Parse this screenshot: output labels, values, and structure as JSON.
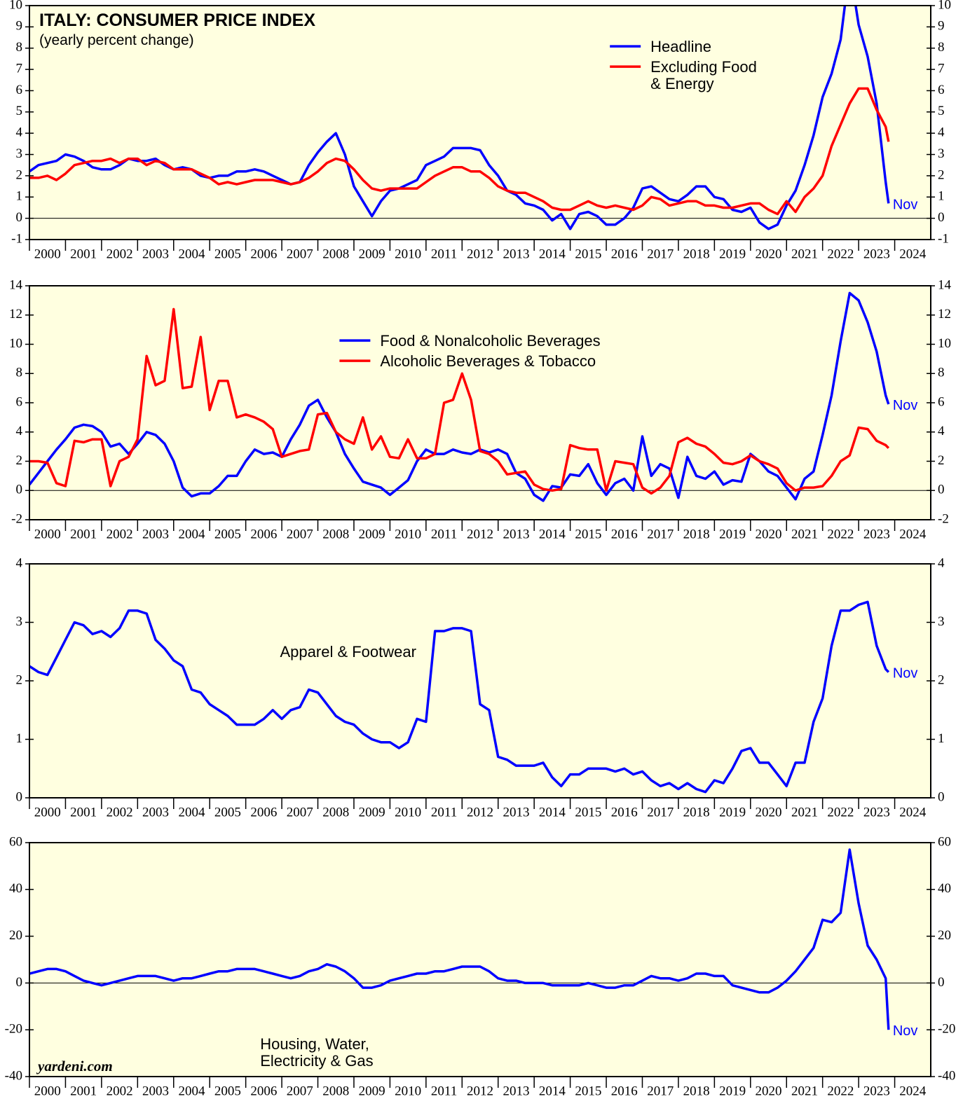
{
  "chart_data": [
    {
      "type": "line",
      "title": "ITALY: CONSUMER PRICE INDEX",
      "subtitle": "(yearly percent change)",
      "annotation": "Nov",
      "legend": "upper right",
      "xlim": [
        2000,
        2025
      ],
      "ylim": [
        -1,
        10
      ],
      "yticks": [
        -1,
        0,
        1,
        2,
        3,
        4,
        5,
        6,
        7,
        8,
        9,
        10
      ],
      "xticks": [
        2000,
        2001,
        2002,
        2003,
        2004,
        2005,
        2006,
        2007,
        2008,
        2009,
        2010,
        2011,
        2012,
        2013,
        2014,
        2015,
        2016,
        2017,
        2018,
        2019,
        2020,
        2021,
        2022,
        2023,
        2024
      ],
      "x": [
        2000,
        2000.25,
        2000.5,
        2000.75,
        2001,
        2001.25,
        2001.5,
        2001.75,
        2002,
        2002.25,
        2002.5,
        2002.75,
        2003,
        2003.25,
        2003.5,
        2003.75,
        2004,
        2004.25,
        2004.5,
        2004.75,
        2005,
        2005.25,
        2005.5,
        2005.75,
        2006,
        2006.25,
        2006.5,
        2006.75,
        2007,
        2007.25,
        2007.5,
        2007.75,
        2008,
        2008.25,
        2008.5,
        2008.75,
        2009,
        2009.25,
        2009.5,
        2009.75,
        2010,
        2010.25,
        2010.5,
        2010.75,
        2011,
        2011.25,
        2011.5,
        2011.75,
        2012,
        2012.25,
        2012.5,
        2012.75,
        2013,
        2013.25,
        2013.5,
        2013.75,
        2014,
        2014.25,
        2014.5,
        2014.75,
        2015,
        2015.25,
        2015.5,
        2015.75,
        2016,
        2016.25,
        2016.5,
        2016.75,
        2017,
        2017.25,
        2017.5,
        2017.75,
        2018,
        2018.25,
        2018.5,
        2018.75,
        2019,
        2019.25,
        2019.5,
        2019.75,
        2020,
        2020.25,
        2020.5,
        2020.75,
        2021,
        2021.25,
        2021.5,
        2021.75,
        2022,
        2022.25,
        2022.5,
        2022.75,
        2023,
        2023.25,
        2023.5,
        2023.75,
        2023.83
      ],
      "series": [
        {
          "name": "Headline",
          "color": "#0000ff",
          "values": [
            2.2,
            2.5,
            2.6,
            2.7,
            3.0,
            2.9,
            2.7,
            2.4,
            2.3,
            2.3,
            2.5,
            2.8,
            2.7,
            2.7,
            2.8,
            2.5,
            2.3,
            2.4,
            2.3,
            2.0,
            1.9,
            2.0,
            2.0,
            2.2,
            2.2,
            2.3,
            2.2,
            2.0,
            1.8,
            1.6,
            1.7,
            2.5,
            3.1,
            3.6,
            4.0,
            3.0,
            1.5,
            0.8,
            0.1,
            0.8,
            1.3,
            1.4,
            1.6,
            1.8,
            2.5,
            2.7,
            2.9,
            3.3,
            3.3,
            3.3,
            3.2,
            2.5,
            2.0,
            1.3,
            1.1,
            0.7,
            0.6,
            0.4,
            -0.1,
            0.2,
            -0.5,
            0.2,
            0.3,
            0.1,
            -0.3,
            -0.3,
            0.0,
            0.5,
            1.4,
            1.5,
            1.2,
            0.9,
            0.8,
            1.1,
            1.5,
            1.5,
            1.0,
            0.9,
            0.4,
            0.3,
            0.5,
            -0.2,
            -0.5,
            -0.3,
            0.6,
            1.3,
            2.5,
            3.9,
            5.7,
            6.8,
            8.4,
            11.8,
            9.1,
            7.6,
            5.4,
            1.7,
            0.7
          ]
        },
        {
          "name": "Excluding Food\n& Energy",
          "color": "#ff0000",
          "values": [
            1.9,
            1.9,
            2.0,
            1.8,
            2.1,
            2.5,
            2.6,
            2.7,
            2.7,
            2.8,
            2.6,
            2.8,
            2.8,
            2.5,
            2.7,
            2.6,
            2.3,
            2.3,
            2.3,
            2.1,
            1.9,
            1.6,
            1.7,
            1.6,
            1.7,
            1.8,
            1.8,
            1.8,
            1.7,
            1.6,
            1.7,
            1.9,
            2.2,
            2.6,
            2.8,
            2.7,
            2.3,
            1.8,
            1.4,
            1.3,
            1.4,
            1.4,
            1.4,
            1.4,
            1.7,
            2.0,
            2.2,
            2.4,
            2.4,
            2.2,
            2.2,
            1.9,
            1.5,
            1.3,
            1.2,
            1.2,
            1.0,
            0.8,
            0.5,
            0.4,
            0.4,
            0.6,
            0.8,
            0.6,
            0.5,
            0.6,
            0.5,
            0.4,
            0.6,
            1.0,
            0.9,
            0.6,
            0.7,
            0.8,
            0.8,
            0.6,
            0.6,
            0.5,
            0.5,
            0.6,
            0.7,
            0.7,
            0.4,
            0.2,
            0.8,
            0.3,
            1.0,
            1.4,
            2.0,
            3.4,
            4.4,
            5.4,
            6.1,
            6.1,
            5.1,
            4.3,
            3.6
          ]
        }
      ]
    },
    {
      "type": "line",
      "annotation": "Nov",
      "legend": "upper center",
      "xlim": [
        2000,
        2025
      ],
      "ylim": [
        -2,
        14
      ],
      "yticks": [
        -2,
        0,
        2,
        4,
        6,
        8,
        10,
        12,
        14
      ],
      "xticks": [
        2000,
        2001,
        2002,
        2003,
        2004,
        2005,
        2006,
        2007,
        2008,
        2009,
        2010,
        2011,
        2012,
        2013,
        2014,
        2015,
        2016,
        2017,
        2018,
        2019,
        2020,
        2021,
        2022,
        2023,
        2024
      ],
      "x": [
        2000,
        2000.25,
        2000.5,
        2000.75,
        2001,
        2001.25,
        2001.5,
        2001.75,
        2002,
        2002.25,
        2002.5,
        2002.75,
        2003,
        2003.25,
        2003.5,
        2003.75,
        2004,
        2004.25,
        2004.5,
        2004.75,
        2005,
        2005.25,
        2005.5,
        2005.75,
        2006,
        2006.25,
        2006.5,
        2006.75,
        2007,
        2007.25,
        2007.5,
        2007.75,
        2008,
        2008.25,
        2008.5,
        2008.75,
        2009,
        2009.25,
        2009.5,
        2009.75,
        2010,
        2010.25,
        2010.5,
        2010.75,
        2011,
        2011.25,
        2011.5,
        2011.75,
        2012,
        2012.25,
        2012.5,
        2012.75,
        2013,
        2013.25,
        2013.5,
        2013.75,
        2014,
        2014.25,
        2014.5,
        2014.75,
        2015,
        2015.25,
        2015.5,
        2015.75,
        2016,
        2016.25,
        2016.5,
        2016.75,
        2017,
        2017.25,
        2017.5,
        2017.75,
        2018,
        2018.25,
        2018.5,
        2018.75,
        2019,
        2019.25,
        2019.5,
        2019.75,
        2020,
        2020.25,
        2020.5,
        2020.75,
        2021,
        2021.25,
        2021.5,
        2021.75,
        2022,
        2022.25,
        2022.5,
        2022.75,
        2023,
        2023.25,
        2023.5,
        2023.75,
        2023.83
      ],
      "series": [
        {
          "name": "Food & Nonalcoholic Beverages",
          "color": "#0000ff",
          "values": [
            0.4,
            1.2,
            2.0,
            2.8,
            3.5,
            4.3,
            4.5,
            4.4,
            4.0,
            3.0,
            3.2,
            2.5,
            3.2,
            4.0,
            3.8,
            3.2,
            2.0,
            0.2,
            -0.4,
            -0.2,
            -0.2,
            0.3,
            1.0,
            1.0,
            2.0,
            2.8,
            2.5,
            2.6,
            2.3,
            3.5,
            4.5,
            5.8,
            6.2,
            5.0,
            4.0,
            2.5,
            1.5,
            0.6,
            0.4,
            0.2,
            -0.3,
            0.2,
            0.7,
            2.0,
            2.8,
            2.5,
            2.5,
            2.8,
            2.6,
            2.5,
            2.8,
            2.6,
            2.8,
            2.5,
            1.2,
            0.8,
            -0.3,
            -0.7,
            0.3,
            0.2,
            1.1,
            1.0,
            1.8,
            0.5,
            -0.3,
            0.5,
            0.8,
            0.0,
            3.7,
            1.0,
            1.8,
            1.5,
            -0.5,
            2.3,
            1.0,
            0.8,
            1.3,
            0.4,
            0.7,
            0.6,
            2.5,
            2.0,
            1.3,
            1.0,
            0.2,
            -0.6,
            0.8,
            1.3,
            3.8,
            6.5,
            10.2,
            13.5,
            13.0,
            11.5,
            9.5,
            6.5,
            5.9
          ]
        },
        {
          "name": "Alcoholic Beverages & Tobacco",
          "color": "#ff0000",
          "values": [
            2.0,
            2.0,
            1.9,
            0.5,
            0.3,
            3.4,
            3.3,
            3.5,
            3.5,
            0.3,
            2.0,
            2.3,
            3.5,
            9.2,
            7.2,
            7.5,
            12.4,
            7.0,
            7.1,
            10.5,
            5.5,
            7.5,
            7.5,
            5.0,
            5.2,
            5.0,
            4.7,
            4.2,
            2.3,
            2.5,
            2.7,
            2.8,
            5.2,
            5.3,
            4.0,
            3.5,
            3.2,
            5.0,
            2.8,
            3.7,
            2.3,
            2.2,
            3.5,
            2.2,
            2.2,
            2.5,
            6.0,
            6.2,
            8.0,
            6.2,
            2.7,
            2.5,
            2.0,
            1.1,
            1.2,
            1.3,
            0.4,
            0.1,
            0.0,
            0.1,
            3.1,
            2.9,
            2.8,
            2.8,
            0.0,
            2.0,
            1.9,
            1.8,
            0.2,
            -0.2,
            0.2,
            1.0,
            3.3,
            3.6,
            3.2,
            3.0,
            2.5,
            1.9,
            1.8,
            2.0,
            2.4,
            2.0,
            1.8,
            1.5,
            0.5,
            0.0,
            0.2,
            0.2,
            0.3,
            1.0,
            2.0,
            2.4,
            4.3,
            4.2,
            3.4,
            3.1,
            2.9
          ]
        }
      ]
    },
    {
      "type": "line",
      "annotation": "Nov",
      "legend": "center",
      "xlim": [
        2000,
        2025
      ],
      "ylim": [
        0,
        4
      ],
      "yticks": [
        0,
        1,
        2,
        3,
        4
      ],
      "xticks": [
        2000,
        2001,
        2002,
        2003,
        2004,
        2005,
        2006,
        2007,
        2008,
        2009,
        2010,
        2011,
        2012,
        2013,
        2014,
        2015,
        2016,
        2017,
        2018,
        2019,
        2020,
        2021,
        2022,
        2023,
        2024
      ],
      "x": [
        2000,
        2000.25,
        2000.5,
        2000.75,
        2001,
        2001.25,
        2001.5,
        2001.75,
        2002,
        2002.25,
        2002.5,
        2002.75,
        2003,
        2003.25,
        2003.5,
        2003.75,
        2004,
        2004.25,
        2004.5,
        2004.75,
        2005,
        2005.25,
        2005.5,
        2005.75,
        2006,
        2006.25,
        2006.5,
        2006.75,
        2007,
        2007.25,
        2007.5,
        2007.75,
        2008,
        2008.25,
        2008.5,
        2008.75,
        2009,
        2009.25,
        2009.5,
        2009.75,
        2010,
        2010.25,
        2010.5,
        2010.75,
        2011,
        2011.25,
        2011.5,
        2011.75,
        2012,
        2012.25,
        2012.5,
        2012.75,
        2013,
        2013.25,
        2013.5,
        2013.75,
        2014,
        2014.25,
        2014.5,
        2014.75,
        2015,
        2015.25,
        2015.5,
        2015.75,
        2016,
        2016.25,
        2016.5,
        2016.75,
        2017,
        2017.25,
        2017.5,
        2017.75,
        2018,
        2018.25,
        2018.5,
        2018.75,
        2019,
        2019.25,
        2019.5,
        2019.75,
        2020,
        2020.25,
        2020.5,
        2020.75,
        2021,
        2021.25,
        2021.5,
        2021.75,
        2022,
        2022.25,
        2022.5,
        2022.75,
        2023,
        2023.25,
        2023.5,
        2023.75,
        2023.83
      ],
      "series": [
        {
          "name": "Apparel & Footwear",
          "color": "#0000ff",
          "values": [
            2.25,
            2.15,
            2.1,
            2.4,
            2.7,
            3.0,
            2.95,
            2.8,
            2.85,
            2.75,
            2.9,
            3.2,
            3.2,
            3.15,
            2.7,
            2.55,
            2.35,
            2.25,
            1.85,
            1.8,
            1.6,
            1.5,
            1.4,
            1.25,
            1.25,
            1.25,
            1.35,
            1.5,
            1.35,
            1.5,
            1.55,
            1.85,
            1.8,
            1.6,
            1.4,
            1.3,
            1.25,
            1.1,
            1.0,
            0.95,
            0.95,
            0.85,
            0.95,
            1.35,
            1.3,
            2.85,
            2.85,
            2.9,
            2.9,
            2.85,
            1.6,
            1.5,
            0.7,
            0.65,
            0.55,
            0.55,
            0.55,
            0.6,
            0.35,
            0.2,
            0.4,
            0.4,
            0.5,
            0.5,
            0.5,
            0.45,
            0.5,
            0.4,
            0.45,
            0.3,
            0.2,
            0.25,
            0.15,
            0.25,
            0.15,
            0.1,
            0.3,
            0.25,
            0.5,
            0.8,
            0.85,
            0.6,
            0.6,
            0.4,
            0.2,
            0.6,
            0.6,
            1.3,
            1.7,
            2.6,
            3.2,
            3.2,
            3.3,
            3.35,
            2.6,
            2.2,
            2.15
          ]
        }
      ]
    },
    {
      "type": "line",
      "annotation": "Nov",
      "legend": "lower left",
      "source": "yardeni.com",
      "xlim": [
        2000,
        2025
      ],
      "ylim": [
        -40,
        60
      ],
      "yticks": [
        -40,
        -20,
        0,
        20,
        40,
        60
      ],
      "xticks": [
        2000,
        2001,
        2002,
        2003,
        2004,
        2005,
        2006,
        2007,
        2008,
        2009,
        2010,
        2011,
        2012,
        2013,
        2014,
        2015,
        2016,
        2017,
        2018,
        2019,
        2020,
        2021,
        2022,
        2023,
        2024
      ],
      "x": [
        2000,
        2000.25,
        2000.5,
        2000.75,
        2001,
        2001.25,
        2001.5,
        2001.75,
        2002,
        2002.25,
        2002.5,
        2002.75,
        2003,
        2003.25,
        2003.5,
        2003.75,
        2004,
        2004.25,
        2004.5,
        2004.75,
        2005,
        2005.25,
        2005.5,
        2005.75,
        2006,
        2006.25,
        2006.5,
        2006.75,
        2007,
        2007.25,
        2007.5,
        2007.75,
        2008,
        2008.25,
        2008.5,
        2008.75,
        2009,
        2009.25,
        2009.5,
        2009.75,
        2010,
        2010.25,
        2010.5,
        2010.75,
        2011,
        2011.25,
        2011.5,
        2011.75,
        2012,
        2012.25,
        2012.5,
        2012.75,
        2013,
        2013.25,
        2013.5,
        2013.75,
        2014,
        2014.25,
        2014.5,
        2014.75,
        2015,
        2015.25,
        2015.5,
        2015.75,
        2016,
        2016.25,
        2016.5,
        2016.75,
        2017,
        2017.25,
        2017.5,
        2017.75,
        2018,
        2018.25,
        2018.5,
        2018.75,
        2019,
        2019.25,
        2019.5,
        2019.75,
        2020,
        2020.25,
        2020.5,
        2020.75,
        2021,
        2021.25,
        2021.5,
        2021.75,
        2022,
        2022.25,
        2022.5,
        2022.75,
        2023,
        2023.25,
        2023.5,
        2023.75,
        2023.83
      ],
      "series": [
        {
          "name": "Housing, Water,\nElectricity & Gas",
          "color": "#0000ff",
          "values": [
            4,
            5,
            6,
            6,
            5,
            3,
            1,
            0,
            -1,
            0,
            1,
            2,
            3,
            3,
            3,
            2,
            1,
            2,
            2,
            3,
            4,
            5,
            5,
            6,
            6,
            6,
            5,
            4,
            3,
            2,
            3,
            5,
            6,
            8,
            7,
            5,
            2,
            -2,
            -2,
            -1,
            1,
            2,
            3,
            4,
            4,
            5,
            5,
            6,
            7,
            7,
            7,
            5,
            2,
            1,
            1,
            0,
            0,
            0,
            -1,
            -1,
            -1,
            -1,
            0,
            -1,
            -2,
            -2,
            -1,
            -1,
            1,
            3,
            2,
            2,
            1,
            2,
            4,
            4,
            3,
            3,
            -1,
            -2,
            -3,
            -4,
            -4,
            -2,
            1,
            5,
            10,
            15,
            27,
            26,
            30,
            57,
            34,
            16,
            10,
            2,
            -20
          ]
        }
      ]
    }
  ]
}
